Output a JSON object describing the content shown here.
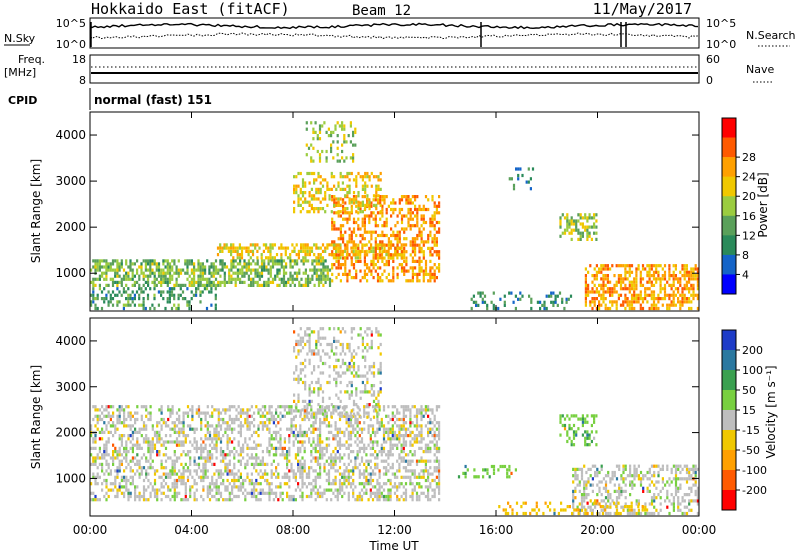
{
  "header": {
    "title": "Hokkaido East (fitACF)",
    "beam": "Beam 12",
    "date": "11/May/2017"
  },
  "left_labels": {
    "nsky": "N.Sky",
    "freq_line1": "Freq.",
    "freq_line2": "[MHz]",
    "cpid": "CPID"
  },
  "right_labels": {
    "nsearch": "N.Search",
    "nave": "Nave"
  },
  "noise_axis": {
    "left_ticks": [
      "10^5",
      "10^0"
    ],
    "right_ticks": [
      "10^5",
      "10^0"
    ]
  },
  "freq_axis": {
    "left_ticks": [
      "18",
      "8"
    ],
    "right_ticks": [
      "60",
      "0"
    ]
  },
  "cpid_text": "normal (fast) 151",
  "chart_data": [
    {
      "type": "heatmap",
      "panel": "power",
      "xlabel": "",
      "ylabel": "Slant Range [km]",
      "x_range_hours": [
        0,
        24
      ],
      "y_range_km": [
        180,
        4500
      ],
      "x_tick_labels": [
        "00:00",
        "04:00",
        "08:00",
        "12:00",
        "16:00",
        "20:00",
        "00:00"
      ],
      "y_tick_values": [
        1000,
        2000,
        3000,
        4000
      ],
      "y_tick_labels": [
        "1000",
        "2000",
        "3000",
        "4000"
      ],
      "colorbar": {
        "label": "Power [dB]",
        "tick_labels": [
          "4",
          "8",
          "12",
          "16",
          "20",
          "24",
          "28"
        ],
        "colors": [
          "#0000ff",
          "#1464c8",
          "#2a8a5a",
          "#5aa05a",
          "#9bcc40",
          "#f0c800",
          "#ffa000",
          "#ff5a00",
          "#ff0000"
        ]
      },
      "features": [
        {
          "t0": 0.0,
          "t1": 9.5,
          "r0": 700,
          "r1": 1300,
          "value": 16,
          "density": 0.6
        },
        {
          "t0": 5.0,
          "t1": 12.5,
          "r0": 1300,
          "r1": 1650,
          "value": 22,
          "density": 0.55
        },
        {
          "t0": 9.5,
          "t1": 13.8,
          "r0": 800,
          "r1": 2700,
          "value": 26,
          "density": 0.45
        },
        {
          "t0": 8.0,
          "t1": 11.5,
          "r0": 2300,
          "r1": 3200,
          "value": 22,
          "density": 0.4
        },
        {
          "t0": 8.5,
          "t1": 10.5,
          "r0": 3400,
          "r1": 4300,
          "value": 18,
          "density": 0.25
        },
        {
          "t0": 0.0,
          "t1": 5.0,
          "r0": 200,
          "r1": 700,
          "value": 12,
          "density": 0.35
        },
        {
          "t0": 18.5,
          "t1": 20.0,
          "r0": 1700,
          "r1": 2300,
          "value": 18,
          "density": 0.45
        },
        {
          "t0": 19.5,
          "t1": 24.0,
          "r0": 200,
          "r1": 1200,
          "value": 26,
          "density": 0.55
        },
        {
          "t0": 15.0,
          "t1": 19.0,
          "r0": 200,
          "r1": 600,
          "value": 10,
          "density": 0.3
        },
        {
          "t0": 16.5,
          "t1": 17.5,
          "r0": 2800,
          "r1": 3300,
          "value": 10,
          "density": 0.25
        }
      ]
    },
    {
      "type": "heatmap",
      "panel": "velocity",
      "xlabel": "Time UT",
      "ylabel": "Slant Range [km]",
      "x_range_hours": [
        0,
        24
      ],
      "y_range_km": [
        180,
        4500
      ],
      "x_tick_labels": [
        "00:00",
        "04:00",
        "08:00",
        "12:00",
        "16:00",
        "20:00",
        "00:00"
      ],
      "y_tick_values": [
        1000,
        2000,
        3000,
        4000
      ],
      "y_tick_labels": [
        "1000",
        "2000",
        "3000",
        "4000"
      ],
      "colorbar": {
        "label": "Velocity [m s⁻¹]",
        "tick_labels": [
          "200",
          "100",
          "50",
          "15",
          "-15",
          "-50",
          "-100",
          "-200"
        ],
        "colors": [
          "#1e3cc8",
          "#2a78a0",
          "#3aa050",
          "#78d040",
          "#bebebe",
          "#f0c800",
          "#ffa000",
          "#ff5a00",
          "#ff0000"
        ]
      },
      "features": [
        {
          "t0": 0.0,
          "t1": 13.8,
          "r0": 500,
          "r1": 2600,
          "value": 0,
          "density": 0.45
        },
        {
          "t0": 8.0,
          "t1": 11.5,
          "r0": 2300,
          "r1": 4300,
          "value": 0,
          "density": 0.3
        },
        {
          "t0": 19.0,
          "t1": 24.0,
          "r0": 200,
          "r1": 1300,
          "value": 0,
          "density": 0.4
        },
        {
          "t0": 18.5,
          "t1": 20.0,
          "r0": 1700,
          "r1": 2400,
          "value": 40,
          "density": 0.4
        },
        {
          "t0": 14.5,
          "t1": 17.0,
          "r0": 1000,
          "r1": 1300,
          "value": 40,
          "density": 0.25
        },
        {
          "t0": 16.0,
          "t1": 22.0,
          "r0": 200,
          "r1": 500,
          "value": -40,
          "density": 0.25
        }
      ]
    }
  ]
}
